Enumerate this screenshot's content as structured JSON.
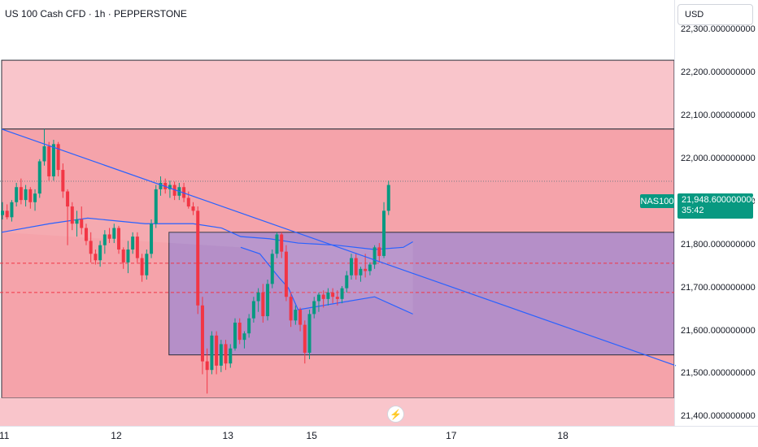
{
  "header": {
    "title": "US 100 Cash CFD · 1h · PEPPERSTONE"
  },
  "currency_button": {
    "label": "USD"
  },
  "price_scale": [
    {
      "label": "22,300.000000000",
      "value": 22300
    },
    {
      "label": "22,200.000000000",
      "value": 22200
    },
    {
      "label": "22,100.000000000",
      "value": 22100
    },
    {
      "label": "22,000.000000000",
      "value": 22000
    },
    {
      "label": "21,900.000000000",
      "value": 21900
    },
    {
      "label": "21,800.000000000",
      "value": 21800
    },
    {
      "label": "21,700.000000000",
      "value": 21700
    },
    {
      "label": "21,600.000000000",
      "value": 21600
    },
    {
      "label": "21,500.000000000",
      "value": 21500
    },
    {
      "label": "21,400.000000000",
      "value": 21400
    }
  ],
  "time_scale": [
    {
      "label": "11",
      "x": 0
    },
    {
      "label": "12",
      "x": 24
    },
    {
      "label": "13",
      "x": 48
    },
    {
      "label": "15",
      "x": 66
    },
    {
      "label": "17",
      "x": 96
    },
    {
      "label": "18",
      "x": 120
    }
  ],
  "symbol_tag": "NAS100",
  "last_price": {
    "price": "21,948.600000000",
    "countdown": "35:42"
  },
  "event_icon": "lightning-bolt-icon",
  "colors": {
    "up": "#089981",
    "down": "#f23645",
    "trendline": "#2962ff",
    "zone_outer": "#f9c5cb",
    "zone_inner": "#f5a3aa",
    "purple_box": "#b58fc8"
  },
  "chart_data": {
    "type": "candlestick",
    "title": "US 100 Cash CFD · 1h · PEPPERSTONE",
    "y_range": [
      21380,
      22370
    ],
    "x_range": [
      0,
      141
    ],
    "candles": [
      [
        21870,
        21900,
        21860,
        21880
      ],
      [
        21880,
        21895,
        21860,
        21865
      ],
      [
        21865,
        21905,
        21855,
        21900
      ],
      [
        21900,
        21945,
        21890,
        21935
      ],
      [
        21935,
        21955,
        21895,
        21905
      ],
      [
        21905,
        21940,
        21890,
        21930
      ],
      [
        21930,
        21935,
        21885,
        21900
      ],
      [
        21900,
        21930,
        21880,
        21920
      ],
      [
        21920,
        22000,
        21910,
        21995
      ],
      [
        21995,
        22070,
        21985,
        22030
      ],
      [
        22030,
        22040,
        21950,
        21960
      ],
      [
        21960,
        22045,
        21950,
        22035
      ],
      [
        22035,
        22040,
        21960,
        21975
      ],
      [
        21975,
        21990,
        21910,
        21925
      ],
      [
        21925,
        21930,
        21800,
        21890
      ],
      [
        21890,
        21900,
        21835,
        21850
      ],
      [
        21850,
        21880,
        21820,
        21860
      ],
      [
        21860,
        21890,
        21825,
        21840
      ],
      [
        21840,
        21850,
        21800,
        21810
      ],
      [
        21810,
        21830,
        21760,
        21780
      ],
      [
        21780,
        21790,
        21755,
        21765
      ],
      [
        21765,
        21810,
        21750,
        21800
      ],
      [
        21800,
        21835,
        21780,
        21825
      ],
      [
        21825,
        21840,
        21805,
        21815
      ],
      [
        21815,
        21850,
        21805,
        21840
      ],
      [
        21840,
        21845,
        21780,
        21790
      ],
      [
        21790,
        21795,
        21745,
        21760
      ],
      [
        21760,
        21810,
        21735,
        21790
      ],
      [
        21790,
        21830,
        21780,
        21820
      ],
      [
        21820,
        21830,
        21760,
        21770
      ],
      [
        21770,
        21780,
        21715,
        21730
      ],
      [
        21730,
        21790,
        21720,
        21780
      ],
      [
        21780,
        21860,
        21770,
        21850
      ],
      [
        21850,
        21940,
        21840,
        21930
      ],
      [
        21930,
        21960,
        21915,
        21945
      ],
      [
        21945,
        21955,
        21920,
        21930
      ],
      [
        21930,
        21950,
        21910,
        21940
      ],
      [
        21940,
        21948,
        21905,
        21915
      ],
      [
        21915,
        21945,
        21905,
        21935
      ],
      [
        21935,
        21945,
        21900,
        21910
      ],
      [
        21910,
        21925,
        21885,
        21890
      ],
      [
        21890,
        21900,
        21870,
        21880
      ],
      [
        21880,
        21890,
        21640,
        21660
      ],
      [
        21660,
        21680,
        21500,
        21530
      ],
      [
        21530,
        21560,
        21455,
        21510
      ],
      [
        21510,
        21600,
        21500,
        21590
      ],
      [
        21590,
        21600,
        21500,
        21520
      ],
      [
        21520,
        21580,
        21505,
        21570
      ],
      [
        21570,
        21580,
        21510,
        21525
      ],
      [
        21525,
        21570,
        21515,
        21560
      ],
      [
        21560,
        21630,
        21555,
        21620
      ],
      [
        21620,
        21630,
        21570,
        21580
      ],
      [
        21580,
        21600,
        21560,
        21595
      ],
      [
        21595,
        21640,
        21585,
        21630
      ],
      [
        21630,
        21680,
        21620,
        21670
      ],
      [
        21670,
        21700,
        21645,
        21690
      ],
      [
        21690,
        21710,
        21620,
        21635
      ],
      [
        21635,
        21720,
        21625,
        21710
      ],
      [
        21710,
        21790,
        21700,
        21780
      ],
      [
        21780,
        21830,
        21770,
        21825
      ],
      [
        21825,
        21830,
        21770,
        21785
      ],
      [
        21785,
        21800,
        21670,
        21680
      ],
      [
        21680,
        21690,
        21610,
        21625
      ],
      [
        21625,
        21660,
        21615,
        21650
      ],
      [
        21650,
        21655,
        21600,
        21615
      ],
      [
        21615,
        21625,
        21525,
        21550
      ],
      [
        21550,
        21650,
        21535,
        21640
      ],
      [
        21640,
        21680,
        21630,
        21670
      ],
      [
        21670,
        21690,
        21645,
        21685
      ],
      [
        21685,
        21695,
        21655,
        21675
      ],
      [
        21675,
        21700,
        21660,
        21690
      ],
      [
        21690,
        21700,
        21665,
        21680
      ],
      [
        21680,
        21695,
        21660,
        21675
      ],
      [
        21675,
        21705,
        21665,
        21700
      ],
      [
        21700,
        21740,
        21690,
        21730
      ],
      [
        21730,
        21780,
        21720,
        21770
      ],
      [
        21770,
        21780,
        21720,
        21730
      ],
      [
        21730,
        21750,
        21715,
        21745
      ],
      [
        21745,
        21780,
        21725,
        21740
      ],
      [
        21740,
        21760,
        21730,
        21755
      ],
      [
        21755,
        21800,
        21745,
        21795
      ],
      [
        21795,
        21805,
        21760,
        21775
      ],
      [
        21775,
        21900,
        21770,
        21880
      ],
      [
        21880,
        21950,
        21870,
        21940
      ]
    ],
    "moving_average": [
      [
        0,
        21830
      ],
      [
        10,
        21850
      ],
      [
        18,
        21863
      ],
      [
        30,
        21850
      ],
      [
        40,
        21850
      ],
      [
        46,
        21840
      ],
      [
        50,
        21820
      ],
      [
        56,
        21815
      ],
      [
        62,
        21805
      ],
      [
        70,
        21800
      ],
      [
        78,
        21790
      ],
      [
        84,
        21795
      ],
      [
        86,
        21808
      ],
      [
        86,
        21640
      ],
      [
        78,
        21680
      ],
      [
        70,
        21665
      ],
      [
        62,
        21650
      ],
      [
        60,
        21700
      ],
      [
        58,
        21725
      ],
      [
        54,
        21780
      ],
      [
        50,
        21795
      ]
    ],
    "trendline": {
      "from": [
        0,
        22070
      ],
      "to": [
        141,
        21520
      ]
    },
    "zones": [
      {
        "name": "upper-supply",
        "x_from": 0,
        "x_to": 141,
        "y_from": 22070,
        "y_to": 22230
      },
      {
        "name": "main-range",
        "x_from": 0,
        "x_to": 141,
        "y_from": 21445,
        "y_to": 22070
      },
      {
        "name": "demand-box",
        "x_from": 35,
        "x_to": 141,
        "y_from": 21545,
        "y_to": 21830
      }
    ],
    "dashed_levels": [
      21758,
      21690
    ],
    "last_price_level": 21948.6
  }
}
